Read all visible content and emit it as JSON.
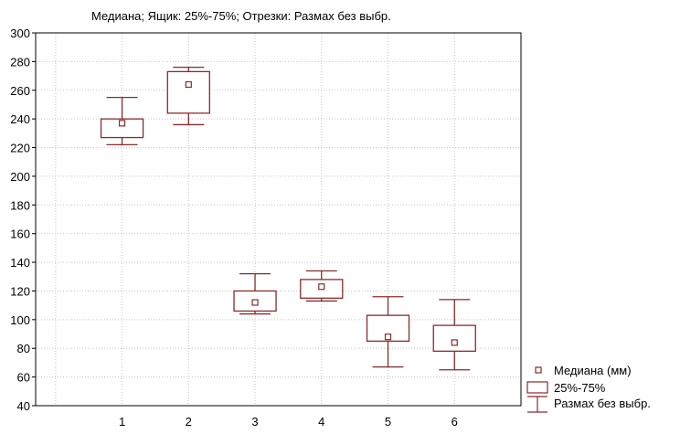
{
  "chart_data": {
    "type": "box",
    "title": "Медиана; Ящик: 25%-75%; Отрезки: Размах без выбр.",
    "xlabel": "",
    "ylabel": "",
    "ylim": [
      40,
      300
    ],
    "y_ticks": [
      40,
      60,
      80,
      100,
      120,
      140,
      160,
      180,
      200,
      220,
      240,
      260,
      280,
      300
    ],
    "categories": [
      "1",
      "2",
      "3",
      "4",
      "5",
      "6"
    ],
    "x_positions": [
      1,
      2,
      3,
      4,
      5,
      6
    ],
    "xlim": [
      -0.3,
      7.0
    ],
    "x_grid": [
      0,
      1,
      2,
      3,
      4,
      5,
      6,
      7
    ],
    "grid": true,
    "legend_position": "bottom-right",
    "series": [
      {
        "category": "1",
        "median": 237,
        "q1": 227,
        "q3": 240,
        "min": 222,
        "max": 255
      },
      {
        "category": "2",
        "median": 264,
        "q1": 244,
        "q3": 273,
        "min": 236,
        "max": 276
      },
      {
        "category": "3",
        "median": 112,
        "q1": 106,
        "q3": 120,
        "min": 104,
        "max": 132
      },
      {
        "category": "4",
        "median": 123,
        "q1": 115,
        "q3": 128,
        "min": 113,
        "max": 134
      },
      {
        "category": "5",
        "median": 88,
        "q1": 85,
        "q3": 103,
        "min": 67,
        "max": 116
      },
      {
        "category": "6",
        "median": 84,
        "q1": 78,
        "q3": 96,
        "min": 65,
        "max": 114
      }
    ],
    "legend": [
      {
        "kind": "median",
        "label": "Медиана (мм)"
      },
      {
        "kind": "box",
        "label": "25%-75%"
      },
      {
        "kind": "whisker",
        "label": "Размах без выбр."
      }
    ],
    "colors": {
      "series": "#8b2a2a",
      "grid": "#c8c8c8",
      "axis": "#000000",
      "background": "#ffffff"
    }
  }
}
